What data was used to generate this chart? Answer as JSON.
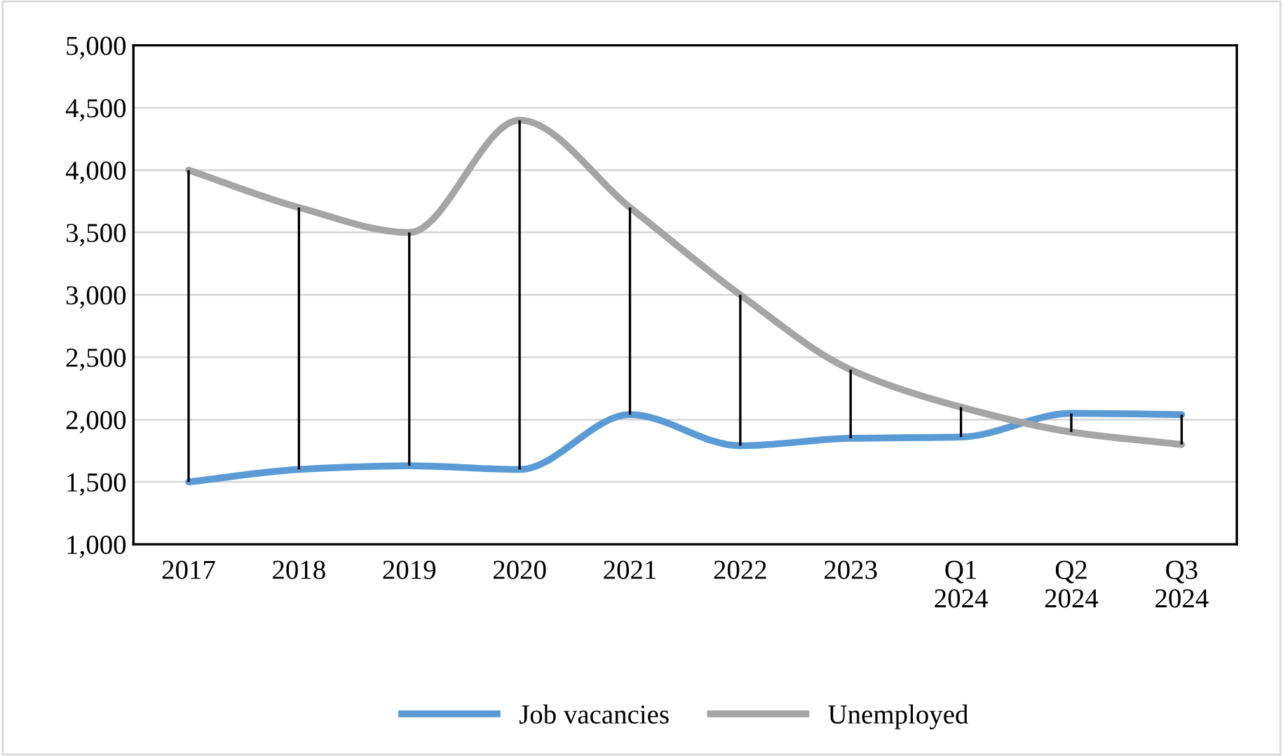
{
  "chart_data": {
    "type": "line",
    "categories": [
      "2017",
      "2018",
      "2019",
      "2020",
      "2021",
      "2022",
      "2023",
      "Q1\n2024",
      "Q2\n2024",
      "Q3\n2024"
    ],
    "series": [
      {
        "name": "Job vacancies",
        "color": "#5b9bd5",
        "values": [
          1500,
          1600,
          1630,
          1600,
          2040,
          1790,
          1850,
          1860,
          2050,
          2040
        ],
        "errors": [
          [
            1500,
            4000
          ],
          [
            1600,
            3700
          ],
          [
            1630,
            3500
          ],
          [
            1600,
            4400
          ],
          [
            2040,
            3700
          ],
          [
            1790,
            3000
          ],
          [
            1850,
            2400
          ],
          [
            1860,
            2100
          ],
          [
            1900,
            2050
          ],
          [
            1800,
            2040
          ]
        ]
      },
      {
        "name": "Unemployed",
        "color": "#a5a5a5",
        "values": [
          4000,
          3700,
          3500,
          4400,
          3700,
          3000,
          2400,
          2100,
          1900,
          1800
        ]
      }
    ],
    "ylim": [
      1000,
      5000
    ],
    "yticks": [
      {
        "value": 1000,
        "label": "1,000"
      },
      {
        "value": 1500,
        "label": "1,500"
      },
      {
        "value": 2000,
        "label": "2,000"
      },
      {
        "value": 2500,
        "label": "2,500"
      },
      {
        "value": 3000,
        "label": "3,000"
      },
      {
        "value": 3500,
        "label": "3,500"
      },
      {
        "value": 4000,
        "label": "4,000"
      },
      {
        "value": 4500,
        "label": "4,500"
      },
      {
        "value": 5000,
        "label": "5,000"
      }
    ],
    "grid": "y",
    "legend": "bottom",
    "marker": "none",
    "line_style": "solid"
  }
}
